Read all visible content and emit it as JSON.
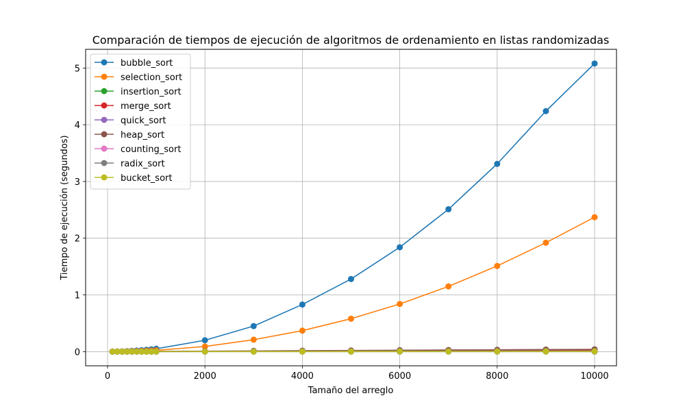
{
  "chart_data": {
    "type": "line",
    "title": "Comparación de tiempos de ejecución de algoritmos de ordenamiento en listas randomizadas",
    "xlabel": "Tamaño del arreglo",
    "ylabel": "Tiempo de ejecución (segundos)",
    "xlim": [
      -450,
      10450
    ],
    "ylim": [
      -0.25,
      5.33
    ],
    "xticks": [
      0,
      2000,
      4000,
      6000,
      8000,
      10000
    ],
    "yticks": [
      0,
      1,
      2,
      3,
      4,
      5
    ],
    "grid": true,
    "legend_position": "top-left",
    "x": [
      100,
      200,
      300,
      400,
      500,
      600,
      700,
      800,
      900,
      1000,
      2000,
      3000,
      4000,
      5000,
      6000,
      7000,
      8000,
      9000,
      10000
    ],
    "series": [
      {
        "name": "bubble_sort",
        "color": "#1f77b4",
        "values": [
          0.0005,
          0.002,
          0.004,
          0.008,
          0.012,
          0.018,
          0.024,
          0.032,
          0.04,
          0.05,
          0.2,
          0.45,
          0.83,
          1.28,
          1.84,
          2.51,
          3.31,
          4.24,
          5.08
        ]
      },
      {
        "name": "selection_sort",
        "color": "#ff7f0e",
        "values": [
          0.0002,
          0.001,
          0.002,
          0.004,
          0.006,
          0.008,
          0.011,
          0.015,
          0.019,
          0.023,
          0.09,
          0.21,
          0.37,
          0.58,
          0.84,
          1.15,
          1.51,
          1.92,
          2.37
        ]
      },
      {
        "name": "insertion_sort",
        "color": "#2ca02c",
        "values": [
          0,
          0,
          0,
          0,
          0,
          0,
          0,
          0,
          0,
          0,
          0,
          0,
          0,
          0,
          0,
          0,
          0,
          0,
          0
        ]
      },
      {
        "name": "merge_sort",
        "color": "#d62728",
        "values": [
          0.0002,
          0.0004,
          0.0006,
          0.0008,
          0.001,
          0.0012,
          0.0015,
          0.0017,
          0.002,
          0.0022,
          0.005,
          0.007,
          0.01,
          0.013,
          0.015,
          0.018,
          0.021,
          0.024,
          0.027
        ]
      },
      {
        "name": "quick_sort",
        "color": "#9467bd",
        "values": [
          0.0001,
          0.0002,
          0.0003,
          0.0004,
          0.0005,
          0.0006,
          0.0007,
          0.0008,
          0.0009,
          0.001,
          0.002,
          0.003,
          0.0045,
          0.006,
          0.007,
          0.008,
          0.009,
          0.011,
          0.012
        ]
      },
      {
        "name": "heap_sort",
        "color": "#8c564b",
        "values": [
          0.0003,
          0.0006,
          0.001,
          0.0014,
          0.0018,
          0.0022,
          0.0026,
          0.003,
          0.0034,
          0.0038,
          0.008,
          0.012,
          0.016,
          0.02,
          0.024,
          0.028,
          0.032,
          0.036,
          0.04
        ]
      },
      {
        "name": "counting_sort",
        "color": "#e377c2",
        "values": [
          0.0001,
          0.0001,
          0.0001,
          0.0002,
          0.0002,
          0.0002,
          0.0002,
          0.0003,
          0.0003,
          0.0003,
          0.0006,
          0.0009,
          0.0012,
          0.0015,
          0.0018,
          0.0021,
          0.0024,
          0.0027,
          0.003
        ]
      },
      {
        "name": "radix_sort",
        "color": "#7f7f7f",
        "values": [
          0.0001,
          0.0002,
          0.0003,
          0.0004,
          0.0005,
          0.0006,
          0.0007,
          0.0008,
          0.0009,
          0.001,
          0.002,
          0.003,
          0.004,
          0.005,
          0.006,
          0.007,
          0.008,
          0.009,
          0.01
        ]
      },
      {
        "name": "bucket_sort",
        "color": "#bcbd22",
        "values": [
          0.0001,
          0.0001,
          0.0002,
          0.0002,
          0.0003,
          0.0003,
          0.0004,
          0.0004,
          0.0005,
          0.0005,
          0.001,
          0.0015,
          0.002,
          0.0025,
          0.003,
          0.0035,
          0.004,
          0.0045,
          0.005
        ]
      }
    ]
  }
}
